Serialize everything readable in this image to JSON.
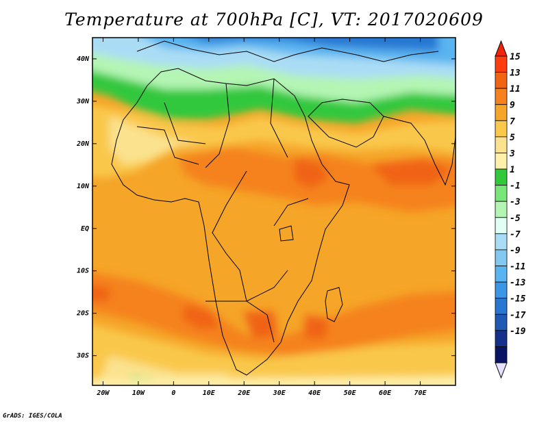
{
  "title": "Temperature at 700hPa [C], VT: 2017020609",
  "credit": "GrADS: IGES/COLA",
  "map": {
    "projection": "lat-lon",
    "lon_range": [
      -23,
      80
    ],
    "lat_range": [
      -37,
      45
    ],
    "lat_ticks": [
      {
        "value": 40,
        "label": "40N"
      },
      {
        "value": 30,
        "label": "30N"
      },
      {
        "value": 20,
        "label": "20N"
      },
      {
        "value": 10,
        "label": "10N"
      },
      {
        "value": 0,
        "label": "EQ"
      },
      {
        "value": -10,
        "label": "10S"
      },
      {
        "value": -20,
        "label": "20S"
      },
      {
        "value": -30,
        "label": "30S"
      }
    ],
    "lon_ticks": [
      {
        "value": -20,
        "label": "20W"
      },
      {
        "value": -10,
        "label": "10W"
      },
      {
        "value": 0,
        "label": "0"
      },
      {
        "value": 10,
        "label": "10E"
      },
      {
        "value": 20,
        "label": "20E"
      },
      {
        "value": 30,
        "label": "30E"
      },
      {
        "value": 40,
        "label": "40E"
      },
      {
        "value": 50,
        "label": "50E"
      },
      {
        "value": 60,
        "label": "60E"
      },
      {
        "value": 70,
        "label": "70E"
      }
    ]
  },
  "colorbar": {
    "levels": [
      15,
      13,
      11,
      9,
      7,
      5,
      3,
      1,
      -1,
      -3,
      -5,
      -7,
      -9,
      -11,
      -13,
      -15,
      -17,
      -19
    ],
    "over_color": "#f0240a",
    "under_color": "#e6e0ff",
    "colors": [
      "#ff3e10",
      "#f06414",
      "#f5821e",
      "#f5a528",
      "#f9c84c",
      "#fbe28e",
      "#fff0aa",
      "#32c83c",
      "#78e678",
      "#b4f5b4",
      "#e1fff5",
      "#aaddf5",
      "#82c8f0",
      "#5ab4f0",
      "#3c96e6",
      "#2878d2",
      "#1e5ab4",
      "#14328c",
      "#0a1464"
    ]
  }
}
